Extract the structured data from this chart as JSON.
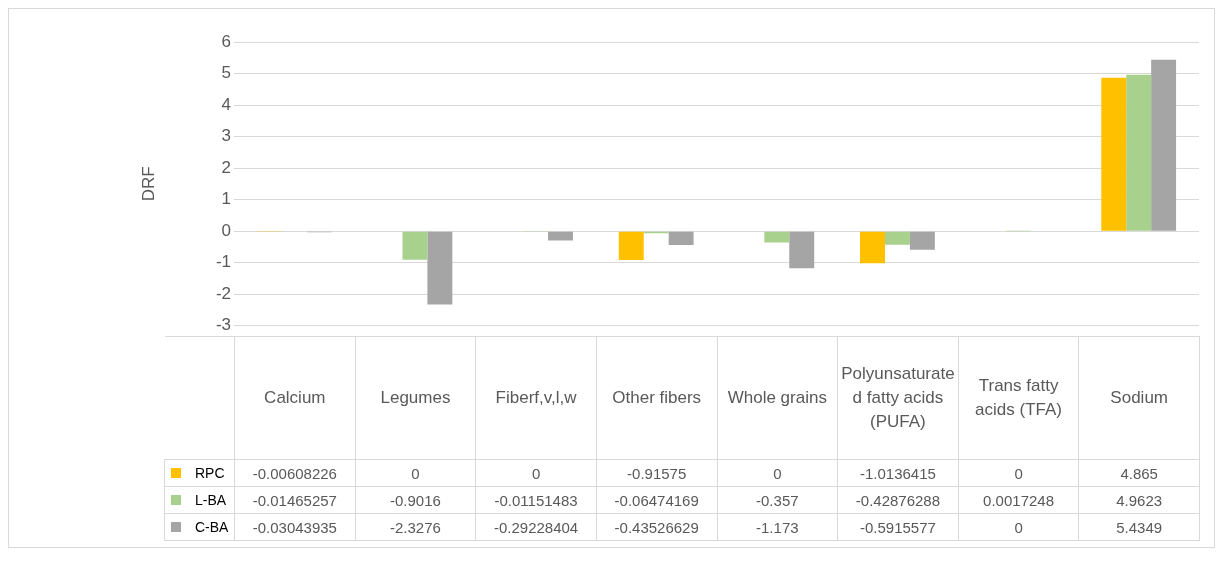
{
  "chart_data": {
    "type": "bar",
    "ylabel": "DRF",
    "categories": [
      "Calcium",
      "Legumes",
      "Fiberf,v,l,w",
      "Other fibers",
      "Whole grains",
      "Polyunsaturated fatty acids (PUFA)",
      "Trans fatty acids (TFA)",
      "Sodium"
    ],
    "series": [
      {
        "name": "RPC",
        "color": "#ffc000",
        "values": [
          -0.00608226,
          0,
          0,
          -0.91575,
          0,
          -1.0136415,
          0,
          4.865
        ]
      },
      {
        "name": "L-BA",
        "color": "#a9d18e",
        "values": [
          -0.01465257,
          -0.9016,
          -0.01151483,
          -0.06474169,
          -0.357,
          -0.42876288,
          0.0017248,
          4.9623
        ]
      },
      {
        "name": "C-BA",
        "color": "#a5a5a5",
        "values": [
          -0.03043935,
          -2.3276,
          -0.29228404,
          -0.43526629,
          -1.173,
          -0.5915577,
          0,
          5.4349
        ]
      }
    ],
    "ylim": [
      -3,
      6
    ],
    "yticks": [
      -3,
      -2,
      -1,
      0,
      1,
      2,
      3,
      4,
      5,
      6
    ],
    "grid": "y",
    "legend": "bottom",
    "data_labels": true
  }
}
